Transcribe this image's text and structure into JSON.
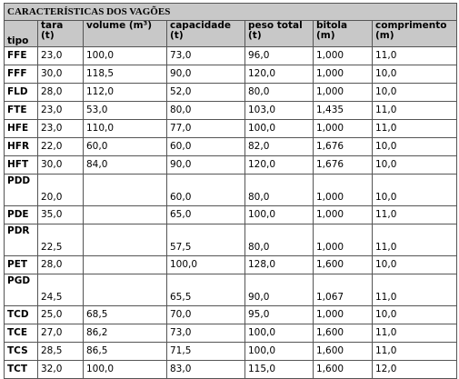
{
  "table": {
    "title": "CARACTERÍSTICAS DOS VAGÕES",
    "columns": [
      "tipo",
      "tara\n(t)",
      "volume (m³)",
      "capacidade\n(t)",
      "peso total\n(t)",
      "bitola\n(m)",
      "comprimento\n(m)"
    ],
    "rows": [
      [
        "FFE",
        "23,0",
        "100,0",
        "73,0",
        "96,0",
        "1,000",
        "11,0"
      ],
      [
        "FFF",
        "30,0",
        "118,5",
        "90,0",
        "120,0",
        "1,000",
        "10,0"
      ],
      [
        "FLD",
        "28,0",
        "112,0",
        "52,0",
        "80,0",
        "1,000",
        "10,0"
      ],
      [
        "FTE",
        "23,0",
        "53,0",
        "80,0",
        "103,0",
        "1,435",
        "11,0"
      ],
      [
        "HFE",
        "23,0",
        "110,0",
        "77,0",
        "100,0",
        "1,000",
        "11,0"
      ],
      [
        "HFR",
        "22,0",
        "60,0",
        "60,0",
        "82,0",
        "1,676",
        "10,0"
      ],
      [
        "HFT",
        "30,0",
        "84,0",
        "90,0",
        "120,0",
        "1,676",
        "10,0"
      ],
      [
        "PDD",
        "20,0",
        null,
        "60,0",
        "80,0",
        "1,000",
        "10,0"
      ],
      [
        "PDE",
        "35,0",
        null,
        "65,0",
        "100,0",
        "1,000",
        "11,0"
      ],
      [
        "PDR",
        "22,5",
        null,
        "57,5",
        "80,0",
        "1,000",
        "11,0"
      ],
      [
        "PET",
        "28,0",
        null,
        "100,0",
        "128,0",
        "1,600",
        "10,0"
      ],
      [
        "PGD",
        "24,5",
        null,
        "65,5",
        "90,0",
        "1,067",
        "11,0"
      ],
      [
        "TCD",
        "25,0",
        "68,5",
        "70,0",
        "95,0",
        "1,000",
        "10,0"
      ],
      [
        "TCE",
        "27,0",
        "86,2",
        "73,0",
        "100,0",
        "1,600",
        "11,0"
      ],
      [
        "TCS",
        "28,5",
        "86,5",
        "71,5",
        "100,0",
        "1,600",
        "11,0"
      ],
      [
        "TCT",
        "32,0",
        "100,0",
        "83,0",
        "115,0",
        "1,600",
        "12,0"
      ]
    ]
  }
}
